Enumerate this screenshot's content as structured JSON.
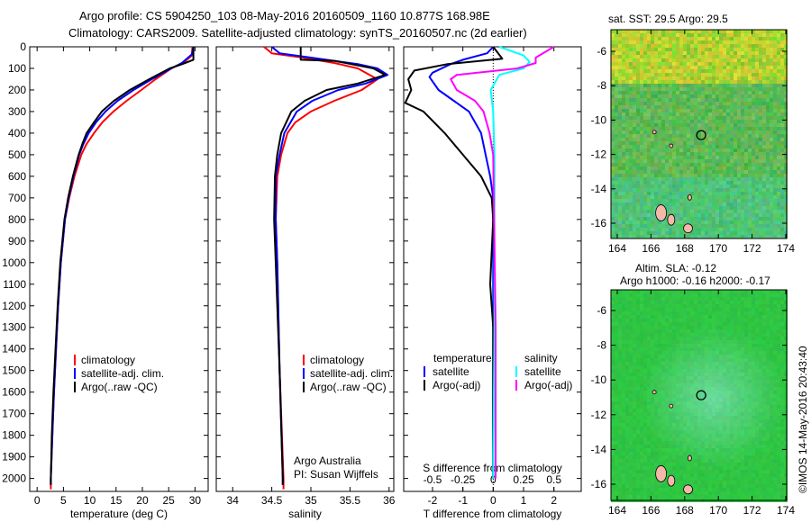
{
  "title": {
    "line1": "Argo profile: CS 5904250_103 08-May-2016 20160509_1160 10.877S 168.98E",
    "line2": "Climatology: CARS2009. Satellite-adjusted climatology: synTS_20160507.nc (2d earlier)"
  },
  "credit": "©IMOS 14-May-2016 20:43:40",
  "colors": {
    "climatology": "#ff0000",
    "satellite": "#0000ff",
    "argo": "#000000",
    "sal_sat": "#00ffff",
    "sal_argo": "#ff00ff"
  },
  "chart_data": [
    {
      "type": "line",
      "xlabel": "temperature (deg C)",
      "ylabel": "",
      "xlim": [
        -1.4,
        32.5
      ],
      "ylim": [
        2060,
        0
      ],
      "xticks": [
        "0",
        "5",
        "10",
        "15",
        "20",
        "25",
        "30"
      ],
      "xtick_values": [
        0,
        5,
        10,
        15,
        20,
        25,
        30
      ],
      "yticks": [
        "0",
        "100",
        "200",
        "300",
        "400",
        "500",
        "600",
        "700",
        "800",
        "900",
        "1000",
        "1100",
        "1200",
        "1300",
        "1400",
        "1500",
        "1600",
        "1700",
        "1800",
        "1900",
        "2000"
      ],
      "legend": [
        "climatology",
        "satellite-adj. clim.",
        "Argo(..raw -QC)"
      ],
      "series": [
        {
          "name": "climatology",
          "color": "#ff0000",
          "points": [
            [
              29.5,
              0
            ],
            [
              29.4,
              40
            ],
            [
              28,
              70
            ],
            [
              25.5,
              100
            ],
            [
              22.5,
              150
            ],
            [
              19.8,
              200
            ],
            [
              17,
              250
            ],
            [
              14.5,
              300
            ],
            [
              12.4,
              350
            ],
            [
              10.8,
              400
            ],
            [
              9.4,
              450
            ],
            [
              8.4,
              500
            ],
            [
              7.1,
              600
            ],
            [
              6.1,
              700
            ],
            [
              5.3,
              800
            ],
            [
              4.9,
              900
            ],
            [
              4.5,
              1000
            ],
            [
              4.0,
              1200
            ],
            [
              3.6,
              1400
            ],
            [
              3.2,
              1600
            ],
            [
              2.9,
              1800
            ],
            [
              2.6,
              2000
            ],
            [
              2.6,
              2050
            ]
          ]
        },
        {
          "name": "satellite-adj. clim.",
          "color": "#0000ff",
          "points": [
            [
              29.7,
              0
            ],
            [
              29.4,
              35
            ],
            [
              27.5,
              75
            ],
            [
              25.5,
              100
            ],
            [
              21.8,
              150
            ],
            [
              18.3,
              200
            ],
            [
              15.3,
              250
            ],
            [
              13,
              300
            ],
            [
              11.2,
              350
            ],
            [
              9.8,
              400
            ],
            [
              8.8,
              450
            ],
            [
              8,
              500
            ],
            [
              6.9,
              600
            ],
            [
              6,
              700
            ],
            [
              5.3,
              800
            ],
            [
              4.9,
              900
            ],
            [
              4.5,
              1000
            ],
            [
              4.0,
              1200
            ],
            [
              3.6,
              1400
            ],
            [
              3.2,
              1600
            ],
            [
              2.9,
              1800
            ],
            [
              2.6,
              2000
            ],
            [
              2.6,
              2030
            ]
          ]
        },
        {
          "name": "Argo(..raw -QC)",
          "color": "#000000",
          "points": [
            [
              29.7,
              0
            ],
            [
              29.7,
              60
            ],
            [
              27.6,
              80
            ],
            [
              25.2,
              100
            ],
            [
              21.3,
              150
            ],
            [
              17.6,
              200
            ],
            [
              14.6,
              250
            ],
            [
              12.3,
              300
            ],
            [
              10.8,
              350
            ],
            [
              9.4,
              400
            ],
            [
              8.6,
              450
            ],
            [
              7.9,
              500
            ],
            [
              6.8,
              600
            ],
            [
              5.9,
              700
            ],
            [
              5.2,
              800
            ],
            [
              4.8,
              900
            ],
            [
              4.4,
              1000
            ],
            [
              3.9,
              1200
            ],
            [
              3.5,
              1400
            ],
            [
              3.1,
              1600
            ],
            [
              2.8,
              1800
            ],
            [
              2.6,
              2000
            ],
            [
              2.6,
              2030
            ]
          ]
        }
      ]
    },
    {
      "type": "line",
      "xlabel": "salinity",
      "xlim": [
        33.79,
        36.06
      ],
      "ylim": [
        2060,
        0
      ],
      "xticks": [
        "34",
        "34.5",
        "35",
        "35.5",
        "36"
      ],
      "xtick_values": [
        34,
        34.5,
        35,
        35.5,
        36
      ],
      "legend": [
        "climatology",
        "satellite-adj. clim.",
        "Argo(..raw -QC)"
      ],
      "annotation": [
        "Argo Australia",
        "PI: Susan Wijffels"
      ],
      "series": [
        {
          "name": "climatology",
          "color": "#ff0000",
          "points": [
            [
              34.4,
              0
            ],
            [
              34.5,
              30
            ],
            [
              34.9,
              50
            ],
            [
              35.3,
              75
            ],
            [
              35.6,
              100
            ],
            [
              35.85,
              150
            ],
            [
              35.65,
              200
            ],
            [
              35.3,
              250
            ],
            [
              35.0,
              300
            ],
            [
              34.8,
              350
            ],
            [
              34.7,
              400
            ],
            [
              34.62,
              500
            ],
            [
              34.57,
              600
            ],
            [
              34.55,
              800
            ],
            [
              34.57,
              1000
            ],
            [
              34.6,
              1500
            ],
            [
              34.65,
              2000
            ],
            [
              34.65,
              2050
            ]
          ]
        },
        {
          "name": "satellite-adj. clim.",
          "color": "#0000ff",
          "points": [
            [
              34.5,
              0
            ],
            [
              34.6,
              30
            ],
            [
              35.0,
              50
            ],
            [
              35.6,
              80
            ],
            [
              35.85,
              100
            ],
            [
              35.98,
              130
            ],
            [
              35.7,
              170
            ],
            [
              35.35,
              200
            ],
            [
              35.02,
              250
            ],
            [
              34.82,
              300
            ],
            [
              34.66,
              400
            ],
            [
              34.6,
              500
            ],
            [
              34.55,
              600
            ],
            [
              34.55,
              800
            ],
            [
              34.57,
              1000
            ],
            [
              34.6,
              1500
            ],
            [
              34.64,
              2000
            ],
            [
              34.64,
              2030
            ]
          ]
        },
        {
          "name": "Argo(..raw -QC)",
          "color": "#000000",
          "points": [
            [
              34.87,
              0
            ],
            [
              34.87,
              60
            ],
            [
              35.3,
              65
            ],
            [
              35.8,
              100
            ],
            [
              35.95,
              130
            ],
            [
              35.6,
              170
            ],
            [
              35.2,
              200
            ],
            [
              34.92,
              250
            ],
            [
              34.75,
              300
            ],
            [
              34.62,
              400
            ],
            [
              34.57,
              500
            ],
            [
              34.54,
              600
            ],
            [
              34.53,
              800
            ],
            [
              34.55,
              1000
            ],
            [
              34.6,
              1500
            ],
            [
              34.64,
              2000
            ],
            [
              34.64,
              2030
            ]
          ]
        }
      ]
    },
    {
      "type": "line",
      "xlabel": "T difference from climatology",
      "xlabel2": "S difference from climatology",
      "xlim": [
        -2.95,
        2.9
      ],
      "ylim": [
        2060,
        0
      ],
      "xticks": [
        "-2",
        "-1",
        "0",
        "1",
        "2"
      ],
      "xtick_values": [
        -2,
        -1,
        0,
        1,
        2
      ],
      "xticks2": [
        "-0.5",
        "-0.25",
        "0",
        "0.25",
        "0.5"
      ],
      "xtick2_values": [
        -0.5,
        -0.25,
        0,
        0.25,
        0.5
      ],
      "legend_headers": [
        "temperature",
        "salinity"
      ],
      "legend": [
        "satellite",
        "Argo(-adj)",
        "satellite",
        "Argo(-adj)"
      ],
      "series": [
        {
          "name": "T satellite",
          "color": "#0000ff",
          "scale": 1,
          "points": [
            [
              0,
              0
            ],
            [
              -0.2,
              30
            ],
            [
              -1.0,
              60
            ],
            [
              -1.4,
              80
            ],
            [
              -2.0,
              120
            ],
            [
              -2.1,
              140
            ],
            [
              -1.8,
              200
            ],
            [
              -1.3,
              250
            ],
            [
              -0.8,
              300
            ],
            [
              -0.4,
              400
            ],
            [
              -0.25,
              500
            ],
            [
              -0.1,
              600
            ],
            [
              0,
              700
            ],
            [
              0,
              2000
            ]
          ]
        },
        {
          "name": "T Argo(-adj)",
          "color": "#000000",
          "scale": 1,
          "points": [
            [
              0,
              0
            ],
            [
              0.3,
              55
            ],
            [
              -1.5,
              80
            ],
            [
              -2.6,
              110
            ],
            [
              -2.8,
              150
            ],
            [
              -2.7,
              200
            ],
            [
              -2.9,
              260
            ],
            [
              -2.3,
              300
            ],
            [
              -1.6,
              400
            ],
            [
              -1.0,
              500
            ],
            [
              -0.4,
              600
            ],
            [
              -0.05,
              700
            ],
            [
              0,
              800
            ],
            [
              -0.1,
              1100
            ],
            [
              0,
              1300
            ],
            [
              0,
              2000
            ]
          ]
        },
        {
          "name": "S satellite",
          "color": "#00ffff",
          "scale": 4,
          "points": [
            [
              0.05,
              0
            ],
            [
              0.25,
              40
            ],
            [
              0.3,
              70
            ],
            [
              0.25,
              100
            ],
            [
              0.05,
              130
            ],
            [
              -0.02,
              200
            ],
            [
              0,
              300
            ],
            [
              0.01,
              500
            ],
            [
              0.01,
              1300
            ],
            [
              0,
              2000
            ]
          ]
        },
        {
          "name": "S Argo(-adj)",
          "color": "#ff00ff",
          "scale": 4,
          "points": [
            [
              0.5,
              0
            ],
            [
              0.35,
              50
            ],
            [
              0.35,
              75
            ],
            [
              0.2,
              100
            ],
            [
              -0.3,
              130
            ],
            [
              -0.35,
              150
            ],
            [
              -0.3,
              200
            ],
            [
              -0.15,
              250
            ],
            [
              -0.08,
              300
            ],
            [
              -0.03,
              400
            ],
            [
              0,
              500
            ],
            [
              0.02,
              1300
            ],
            [
              0.02,
              2000
            ]
          ]
        }
      ]
    }
  ],
  "maps": [
    {
      "title": "sat. SST: 29.5 Argo: 29.5",
      "xticks": [
        "164",
        "166",
        "168",
        "170",
        "172",
        "174"
      ],
      "yticks": [
        "-6",
        "-8",
        "-10",
        "-12",
        "-14",
        "-16"
      ],
      "argo_lon": 168.98,
      "argo_lat": -10.877
    },
    {
      "title1": "Altim. SLA: -0.12",
      "title2": "Argo h1000: -0.16 h2000: -0.17",
      "xticks": [
        "164",
        "166",
        "168",
        "170",
        "172",
        "174"
      ],
      "yticks": [
        "-6",
        "-8",
        "-10",
        "-12",
        "-14",
        "-16"
      ],
      "argo_lon": 168.98,
      "argo_lat": -10.877
    }
  ]
}
